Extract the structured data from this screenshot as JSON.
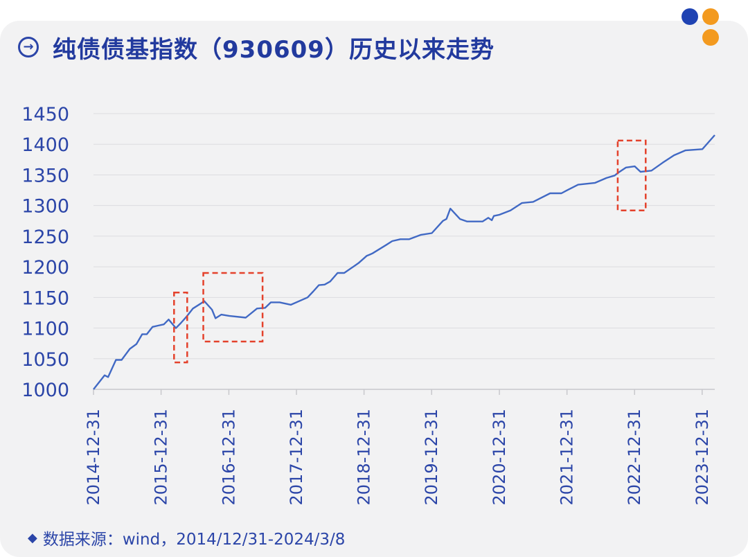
{
  "header": {
    "title": "纯债债基指数（930609）历史以来走势",
    "icon": "arrow-right-circle-icon"
  },
  "decor": {
    "dot_colors": [
      "#1f43b3",
      "#f39a1f",
      "#f39a1f"
    ]
  },
  "footer": {
    "source_icon": "source-icon",
    "source_text": "数据来源：wind，2014/12/31-2024/3/8"
  },
  "colors": {
    "line": "#4169c4",
    "axis_text": "#2b45a8",
    "grid": "#dcdcdf",
    "highlight_box": "#e4412b"
  },
  "chart_data": {
    "type": "line",
    "title": "纯债债基指数（930609）历史以来走势",
    "xlabel": "",
    "ylabel": "",
    "ylim": [
      1000,
      1450
    ],
    "yticks": [
      1000,
      1050,
      1100,
      1150,
      1200,
      1250,
      1300,
      1350,
      1400,
      1450
    ],
    "xticks": [
      "2014-12-31",
      "2015-12-31",
      "2016-12-31",
      "2017-12-31",
      "2018-12-31",
      "2019-12-31",
      "2020-12-31",
      "2021-12-31",
      "2022-12-31",
      "2023-12-31"
    ],
    "xlim": [
      "2014-12-31",
      "2024-03-08"
    ],
    "grid": true,
    "legend": "none",
    "series": [
      {
        "x": [
          "2014-12-31",
          "2015-03-01",
          "2015-03-20",
          "2015-05-01",
          "2015-06-01",
          "2015-07-15",
          "2015-08-20",
          "2015-09-20",
          "2015-10-15",
          "2015-11-15",
          "2015-12-15",
          "2016-01-15",
          "2016-02-10",
          "2016-03-20",
          "2016-04-15",
          "2016-05-15",
          "2016-06-20",
          "2016-08-01",
          "2016-08-20",
          "2016-10-01",
          "2016-10-20",
          "2016-11-20",
          "2017-01-01",
          "2017-04-01",
          "2017-06-01",
          "2017-07-15",
          "2017-08-15",
          "2017-10-01",
          "2017-12-01",
          "2018-03-01",
          "2018-04-01",
          "2018-05-01",
          "2018-06-01",
          "2018-07-01",
          "2018-08-10",
          "2018-09-15",
          "2018-12-01",
          "2019-01-15",
          "2019-02-01",
          "2019-02-15",
          "2019-05-01",
          "2019-06-01",
          "2019-07-15",
          "2019-09-01",
          "2019-11-01",
          "2020-01-01",
          "2020-03-01",
          "2020-03-20",
          "2020-04-10",
          "2020-06-01",
          "2020-07-10",
          "2020-10-01",
          "2020-11-01",
          "2020-11-20",
          "2020-12-01",
          "2021-01-01",
          "2021-03-01",
          "2021-05-01",
          "2021-07-01",
          "2021-10-01",
          "2021-12-01",
          "2022-01-01",
          "2022-03-01",
          "2022-06-01",
          "2022-08-01",
          "2022-09-15",
          "2022-10-01",
          "2022-11-15",
          "2023-01-01",
          "2023-02-01",
          "2023-04-01",
          "2023-06-01",
          "2023-08-01",
          "2023-10-01",
          "2024-01-01",
          "2024-03-08"
        ],
        "values": [
          1000,
          1023,
          1020,
          1048,
          1048,
          1066,
          1074,
          1090,
          1090,
          1102,
          1104,
          1106,
          1114,
          1100,
          1108,
          1118,
          1132,
          1140,
          1144,
          1130,
          1116,
          1122,
          1120,
          1117,
          1132,
          1133,
          1142,
          1142,
          1138,
          1150,
          1160,
          1170,
          1171,
          1176,
          1190,
          1190,
          1206,
          1218,
          1220,
          1222,
          1236,
          1242,
          1245,
          1245,
          1252,
          1255,
          1275,
          1278,
          1295,
          1278,
          1274,
          1274,
          1280,
          1276,
          1283,
          1285,
          1292,
          1304,
          1306,
          1320,
          1320,
          1325,
          1334,
          1337,
          1345,
          1349,
          1353,
          1362,
          1364,
          1355,
          1357,
          1370,
          1382,
          1390,
          1392,
          1415
        ]
      }
    ],
    "highlight_boxes": [
      {
        "x_range": [
          "2016-03-10",
          "2016-05-20"
        ],
        "y_range": [
          1044,
          1158
        ]
      },
      {
        "x_range": [
          "2016-08-15",
          "2017-07-01"
        ],
        "y_range": [
          1078,
          1190
        ]
      },
      {
        "x_range": [
          "2022-10-01",
          "2023-03-01"
        ],
        "y_range": [
          1292,
          1406
        ]
      }
    ]
  }
}
